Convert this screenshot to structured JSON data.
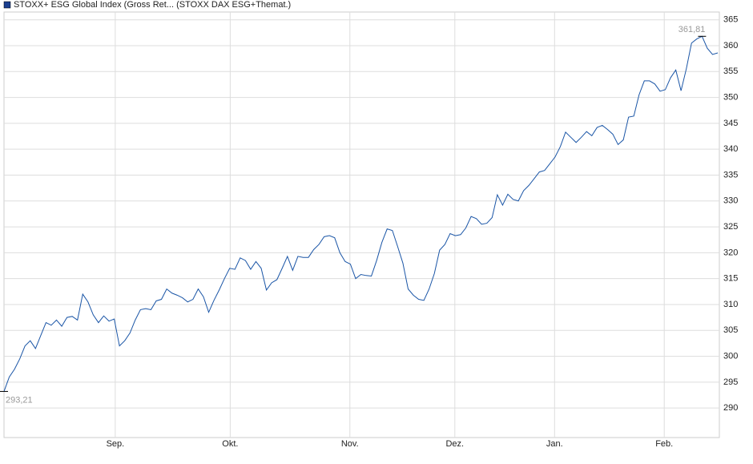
{
  "chart_data": {
    "type": "line",
    "series": [
      {
        "name": "STOXX+ ESG Global Index (Gross Ret... (STOXX DAX ESG+Themat.)",
        "color": "#1a55a6",
        "values": [
          293.21,
          296,
          297.5,
          299.5,
          302,
          303,
          301.5,
          304,
          306.5,
          306,
          307,
          305.8,
          307.5,
          307.7,
          307,
          312,
          310.5,
          308,
          306.5,
          307.8,
          306.8,
          307.2,
          302,
          303,
          304.5,
          307,
          309,
          309.2,
          309,
          310.7,
          311,
          313,
          312.2,
          311.8,
          311.3,
          310.5,
          311,
          313,
          311.5,
          308.5,
          310.8,
          312.8,
          315,
          317,
          316.8,
          319,
          318.5,
          316.8,
          318.3,
          317,
          312.8,
          314.2,
          314.8,
          317,
          319.3,
          316.6,
          319.3,
          319.1,
          319.1,
          320.6,
          321.6,
          323.1,
          323.3,
          322.9,
          320,
          318.3,
          317.8,
          315,
          315.8,
          315.6,
          315.5,
          318.5,
          322,
          324.6,
          324.3,
          321.2,
          318,
          313,
          311.8,
          311,
          310.8,
          313,
          316,
          320.5,
          321.6,
          323.7,
          323.3,
          323.5,
          324.8,
          327,
          326.6,
          325.5,
          325.7,
          326.8,
          331.2,
          329.2,
          331.3,
          330.3,
          330,
          332,
          333,
          334.3,
          335.6,
          335.9,
          337.2,
          338.5,
          340.5,
          343.3,
          342.3,
          341.3,
          342.3,
          343.4,
          342.6,
          344.2,
          344.6,
          343.8,
          342.9,
          340.9,
          341.8,
          346.2,
          346.4,
          350.5,
          353.2,
          353.2,
          352.6,
          351.2,
          351.5,
          353.8,
          355.3,
          351.3,
          355.5,
          360.5,
          361.3,
          361.81,
          359.5,
          358.3,
          358.6
        ]
      }
    ],
    "legend_color": "#1b3f8f",
    "xlim": [
      0,
      136.3
    ],
    "xticks": [
      {
        "value": 21.2,
        "label": "Sep."
      },
      {
        "value": 43.1,
        "label": "Okt."
      },
      {
        "value": 65.9,
        "label": "Nov."
      },
      {
        "value": 85.9,
        "label": "Dez."
      },
      {
        "value": 104.9,
        "label": "Jan."
      },
      {
        "value": 125.8,
        "label": "Feb."
      }
    ],
    "ylim": [
      284.3,
      366.5
    ],
    "yticks": [
      290,
      295,
      300,
      305,
      310,
      315,
      320,
      325,
      330,
      335,
      340,
      345,
      350,
      355,
      360,
      365
    ],
    "grid": true,
    "annotations": [
      {
        "x": 0,
        "value": 293.21,
        "label": "293,21",
        "position": "below"
      },
      {
        "x": 133,
        "value": 361.81,
        "label": "361,81",
        "position": "above"
      }
    ]
  }
}
